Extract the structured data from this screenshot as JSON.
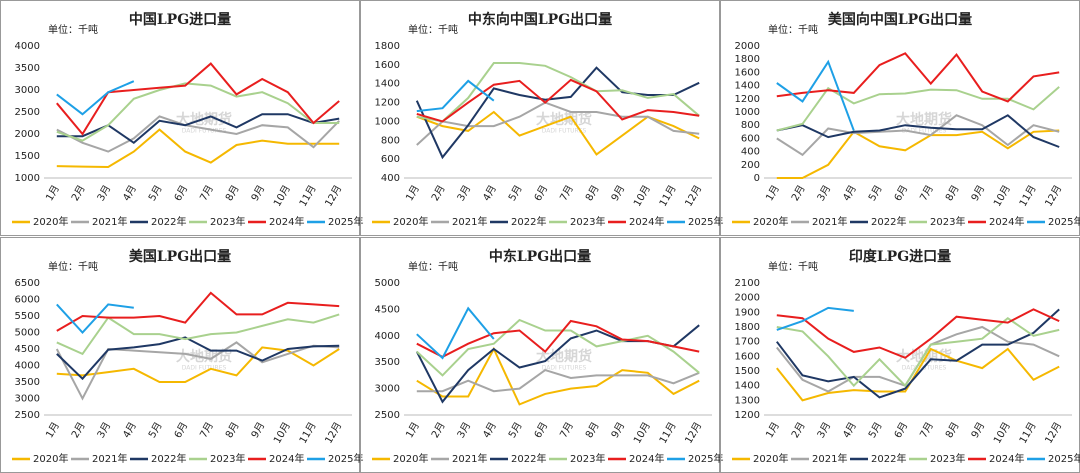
{
  "chart_data": [
    {
      "type": "line",
      "title": "中国LPG进口量",
      "unit": "单位：千吨",
      "watermark": [
        "大地期货",
        "DADI FUTURES"
      ],
      "categories": [
        "1月",
        "2月",
        "3月",
        "4月",
        "5月",
        "6月",
        "7月",
        "8月",
        "9月",
        "10月",
        "11月",
        "12月"
      ],
      "ylim": [
        1000,
        4000
      ],
      "yticks": [
        1000,
        1500,
        2000,
        2500,
        3000,
        3500,
        4000
      ],
      "grid": false,
      "series": [
        {
          "name": "2020年",
          "color": "#f5b800",
          "values": [
            1270,
            1260,
            1250,
            1600,
            2100,
            1600,
            1350,
            1750,
            1850,
            1780,
            1780,
            1780
          ]
        },
        {
          "name": "2021年",
          "color": "#a6a6a6",
          "values": [
            2100,
            1800,
            1600,
            1900,
            2400,
            2200,
            2100,
            2000,
            2200,
            2150,
            1700,
            2300
          ]
        },
        {
          "name": "2022年",
          "color": "#1f3864",
          "values": [
            1950,
            1950,
            2200,
            1800,
            2300,
            2200,
            2400,
            2150,
            2450,
            2450,
            2250,
            2350
          ]
        },
        {
          "name": "2023年",
          "color": "#a9d18e",
          "values": [
            2050,
            1850,
            2200,
            2800,
            3000,
            3150,
            3100,
            2850,
            2950,
            2700,
            2250,
            2250
          ]
        },
        {
          "name": "2024年",
          "color": "#e81e1e",
          "values": [
            2700,
            2000,
            2950,
            3000,
            3050,
            3100,
            3600,
            2900,
            3250,
            2950,
            2250,
            2750
          ]
        },
        {
          "name": "2025年",
          "color": "#1ea0e6",
          "values": [
            2900,
            2450,
            2950,
            3200,
            null,
            null,
            null,
            null,
            null,
            null,
            null,
            null
          ]
        }
      ]
    },
    {
      "type": "line",
      "title": "中东向中国LPG出口量",
      "unit": "单位：千吨",
      "watermark": [
        "大地期货",
        "DADI FUTURES"
      ],
      "categories": [
        "1月",
        "2月",
        "3月",
        "4月",
        "5月",
        "6月",
        "7月",
        "8月",
        "9月",
        "10月",
        "11月",
        "12月"
      ],
      "ylim": [
        400,
        1800
      ],
      "yticks": [
        400,
        600,
        800,
        1000,
        1200,
        1400,
        1600,
        1800
      ],
      "grid": false,
      "series": [
        {
          "name": "2020年",
          "color": "#f5b800",
          "values": [
            1050,
            950,
            900,
            1100,
            850,
            950,
            1050,
            650,
            850,
            1050,
            950,
            820
          ]
        },
        {
          "name": "2021年",
          "color": "#a6a6a6",
          "values": [
            750,
            1000,
            950,
            950,
            1050,
            1200,
            1100,
            1100,
            1050,
            1050,
            900,
            870
          ]
        },
        {
          "name": "2022年",
          "color": "#1f3864",
          "values": [
            1220,
            620,
            960,
            1350,
            1280,
            1230,
            1260,
            1570,
            1310,
            1280,
            1280,
            1410
          ]
        },
        {
          "name": "2023年",
          "color": "#a9d18e",
          "values": [
            1050,
            1000,
            1250,
            1620,
            1620,
            1590,
            1470,
            1320,
            1330,
            1250,
            1290,
            1060
          ]
        },
        {
          "name": "2024年",
          "color": "#e81e1e",
          "values": [
            1080,
            1000,
            1200,
            1390,
            1430,
            1200,
            1440,
            1320,
            1020,
            1120,
            1100,
            1060
          ]
        },
        {
          "name": "2025年",
          "color": "#1ea0e6",
          "values": [
            1110,
            1140,
            1430,
            1220,
            null,
            null,
            null,
            null,
            null,
            null,
            null,
            null
          ]
        }
      ]
    },
    {
      "type": "line",
      "title": "美国向中国LPG出口量",
      "unit": "单位：千吨",
      "watermark": [
        "大地期货",
        "DADI FUTURES"
      ],
      "categories": [
        "1月",
        "2月",
        "3月",
        "4月",
        "5月",
        "6月",
        "7月",
        "8月",
        "9月",
        "10月",
        "11月",
        "12月"
      ],
      "ylim": [
        0,
        2000
      ],
      "yticks": [
        0,
        200,
        400,
        600,
        800,
        1000,
        1200,
        1400,
        1600,
        1800,
        2000
      ],
      "grid": false,
      "series": [
        {
          "name": "2020年",
          "color": "#f5b800",
          "values": [
            0,
            0,
            200,
            700,
            480,
            420,
            650,
            650,
            700,
            450,
            700,
            720
          ]
        },
        {
          "name": "2021年",
          "color": "#a6a6a6",
          "values": [
            600,
            350,
            750,
            680,
            700,
            720,
            650,
            950,
            800,
            500,
            800,
            700
          ]
        },
        {
          "name": "2022年",
          "color": "#1f3864",
          "values": [
            720,
            800,
            620,
            700,
            720,
            800,
            760,
            740,
            740,
            950,
            620,
            470
          ]
        },
        {
          "name": "2023年",
          "color": "#a9d18e",
          "values": [
            720,
            820,
            1360,
            1130,
            1270,
            1280,
            1340,
            1330,
            1200,
            1200,
            1040,
            1380
          ]
        },
        {
          "name": "2024年",
          "color": "#e81e1e",
          "values": [
            1240,
            1290,
            1330,
            1290,
            1710,
            1890,
            1430,
            1870,
            1310,
            1160,
            1540,
            1600
          ]
        },
        {
          "name": "2025年",
          "color": "#1ea0e6",
          "values": [
            1440,
            1160,
            1760,
            720,
            null,
            null,
            null,
            null,
            null,
            null,
            null,
            null
          ]
        }
      ]
    },
    {
      "type": "line",
      "title": "美国LPG出口量",
      "unit": "单位：千吨",
      "watermark": [
        "大地期货",
        "DADI FUTURES"
      ],
      "categories": [
        "1月",
        "2月",
        "3月",
        "4月",
        "5月",
        "6月",
        "7月",
        "8月",
        "9月",
        "10月",
        "11月",
        "12月"
      ],
      "ylim": [
        2500,
        6500
      ],
      "yticks": [
        2500,
        3000,
        3500,
        4000,
        4500,
        5000,
        5500,
        6000,
        6500
      ],
      "grid": false,
      "series": [
        {
          "name": "2020年",
          "color": "#f5b800",
          "values": [
            3750,
            3700,
            3800,
            3900,
            3500,
            3500,
            3900,
            3700,
            4550,
            4450,
            4000,
            4500
          ]
        },
        {
          "name": "2021年",
          "color": "#a6a6a6",
          "values": [
            4500,
            3000,
            4500,
            4450,
            4400,
            4350,
            4200,
            4700,
            4100,
            4350,
            4600,
            4550
          ]
        },
        {
          "name": "2022年",
          "color": "#1f3864",
          "values": [
            4350,
            3600,
            4480,
            4550,
            4650,
            4850,
            4450,
            4450,
            4150,
            4500,
            4580,
            4600
          ]
        },
        {
          "name": "2023年",
          "color": "#a9d18e",
          "values": [
            4700,
            4350,
            5450,
            4950,
            4950,
            4800,
            4950,
            5000,
            5200,
            5400,
            5300,
            5550
          ]
        },
        {
          "name": "2024年",
          "color": "#e81e1e",
          "values": [
            5050,
            5500,
            5450,
            5450,
            5500,
            5300,
            6200,
            5550,
            5550,
            5900,
            5850,
            5800
          ]
        },
        {
          "name": "2025年",
          "color": "#1ea0e6",
          "values": [
            5850,
            5000,
            5850,
            5750,
            null,
            null,
            null,
            null,
            null,
            null,
            null,
            null
          ]
        }
      ]
    },
    {
      "type": "line",
      "title": "中东LPG出口量",
      "unit": "单位：千吨",
      "watermark": [
        "大地期货",
        "DADI FUTURES"
      ],
      "categories": [
        "1月",
        "2月",
        "3月",
        "4月",
        "5月",
        "6月",
        "7月",
        "8月",
        "9月",
        "10月",
        "11月",
        "12月"
      ],
      "ylim": [
        2500,
        5000
      ],
      "yticks": [
        2500,
        3000,
        3500,
        4000,
        4500,
        5000
      ],
      "grid": false,
      "series": [
        {
          "name": "2020年",
          "color": "#f5b800",
          "values": [
            3150,
            2850,
            2850,
            3750,
            2700,
            2900,
            3000,
            3050,
            3350,
            3300,
            2900,
            3150
          ]
        },
        {
          "name": "2021年",
          "color": "#a6a6a6",
          "values": [
            2950,
            2950,
            3150,
            2950,
            3000,
            3350,
            3200,
            3250,
            3250,
            3250,
            3100,
            3300
          ]
        },
        {
          "name": "2022年",
          "color": "#1f3864",
          "values": [
            3700,
            2750,
            3350,
            3750,
            3400,
            3520,
            3950,
            4100,
            3900,
            3900,
            3800,
            4200
          ]
        },
        {
          "name": "2023年",
          "color": "#a9d18e",
          "values": [
            3700,
            3250,
            3750,
            3850,
            4300,
            4100,
            4100,
            3800,
            3900,
            4000,
            3700,
            3300
          ]
        },
        {
          "name": "2024年",
          "color": "#e81e1e",
          "values": [
            3850,
            3600,
            3850,
            4050,
            4100,
            3700,
            4280,
            4180,
            3930,
            3900,
            3800,
            3700
          ]
        },
        {
          "name": "2025年",
          "color": "#1ea0e6",
          "values": [
            4030,
            3580,
            4520,
            3940,
            null,
            null,
            null,
            null,
            null,
            null,
            null,
            null
          ]
        }
      ]
    },
    {
      "type": "line",
      "title": "印度LPG进口量",
      "unit": "单位：千吨",
      "watermark": [
        "大地期货",
        "DADI FUTURES"
      ],
      "categories": [
        "1月",
        "2月",
        "3月",
        "4月",
        "5月",
        "6月",
        "7月",
        "8月",
        "9月",
        "10月",
        "11月",
        "12月"
      ],
      "ylim": [
        1200,
        2100
      ],
      "yticks": [
        1200,
        1300,
        1400,
        1500,
        1600,
        1700,
        1800,
        1900,
        2000,
        2100
      ],
      "grid": false,
      "series": [
        {
          "name": "2020年",
          "color": "#f5b800",
          "values": [
            1520,
            1300,
            1350,
            1370,
            1360,
            1360,
            1650,
            1570,
            1520,
            1650,
            1440,
            1530
          ]
        },
        {
          "name": "2021年",
          "color": "#a6a6a6",
          "values": [
            1660,
            1440,
            1360,
            1460,
            1460,
            1400,
            1680,
            1750,
            1800,
            1700,
            1680,
            1600
          ]
        },
        {
          "name": "2022年",
          "color": "#1f3864",
          "values": [
            1700,
            1470,
            1430,
            1460,
            1320,
            1380,
            1580,
            1570,
            1680,
            1680,
            1760,
            1920
          ]
        },
        {
          "name": "2023年",
          "color": "#a9d18e",
          "values": [
            1800,
            1770,
            1600,
            1400,
            1580,
            1400,
            1680,
            1700,
            1720,
            1860,
            1740,
            1780
          ]
        },
        {
          "name": "2024年",
          "color": "#e81e1e",
          "values": [
            1880,
            1860,
            1720,
            1630,
            1660,
            1590,
            1720,
            1870,
            1850,
            1830,
            1920,
            1840
          ]
        },
        {
          "name": "2025年",
          "color": "#1ea0e6",
          "values": [
            1780,
            1840,
            1930,
            1910,
            null,
            null,
            null,
            null,
            null,
            null,
            null,
            null
          ]
        }
      ]
    }
  ]
}
